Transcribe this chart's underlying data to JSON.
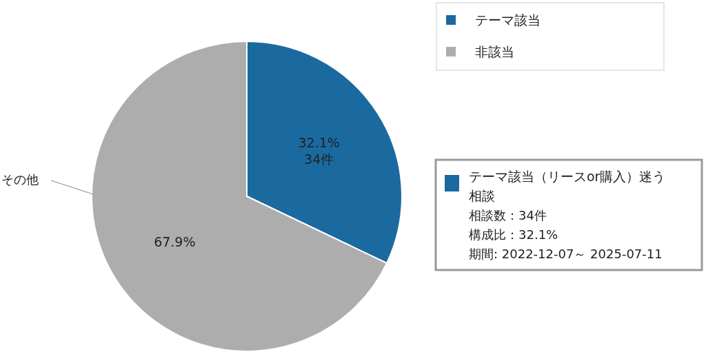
{
  "chart_data": {
    "type": "pie",
    "categories": [
      "テーマ該当",
      "非該当"
    ],
    "values": [
      32.1,
      67.9
    ],
    "colors": [
      "#1a6aa0",
      "#adadad"
    ],
    "value_labels": [
      "32.1%\n34件",
      "67.9%"
    ],
    "legend": "top right",
    "annotations": [
      "その他",
      "テーマ該当（リースor購入）迷う相談",
      "相談数：34件",
      "構成比：32.1%",
      "期間: 2022-12-07～ 2025-07-11"
    ]
  }
}
